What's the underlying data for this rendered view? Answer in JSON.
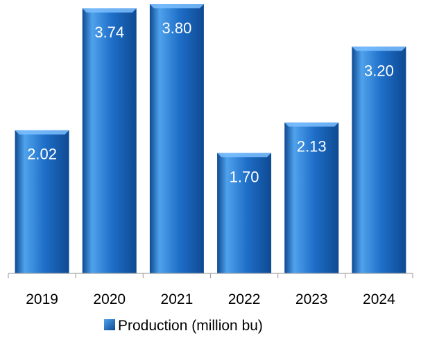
{
  "chart_data": {
    "type": "bar",
    "categories": [
      "2019",
      "2020",
      "2021",
      "2022",
      "2023",
      "2024"
    ],
    "series": [
      {
        "name": "Production (million bu)",
        "values": [
          2.02,
          3.74,
          3.8,
          1.7,
          2.13,
          3.2
        ]
      }
    ],
    "value_labels": [
      "2.02",
      "3.74",
      "3.80",
      "1.70",
      "2.13",
      "3.20"
    ],
    "ylim": [
      0,
      3.8
    ],
    "grid": false,
    "legend_position": "bottom",
    "colors": {
      "bar_fill": "#1e6ec8",
      "bar_light": "#4fa2ec",
      "bar_dark": "#0e4a92",
      "bar_top": "#7cc0ff",
      "label_text": "#ffffff",
      "axis": "#a6a6a6",
      "text": "#000000"
    }
  }
}
